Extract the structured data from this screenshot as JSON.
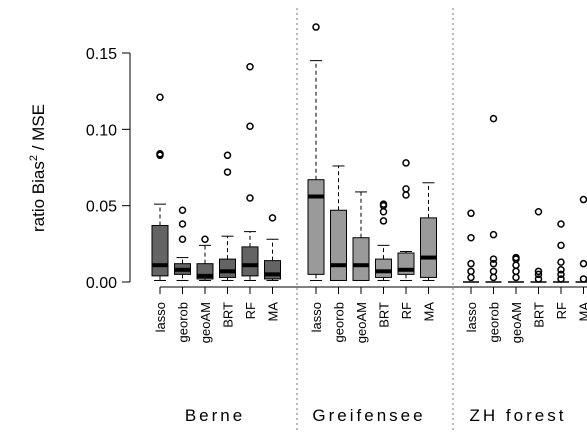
{
  "chart_data": {
    "type": "boxplot",
    "ylabel_main": "ratio Bias",
    "ylabel_sup": "2",
    "ylabel_rest": " / MSE",
    "y_ticks": [
      "0.00",
      "0.05",
      "0.10",
      "0.15"
    ],
    "y_tick_values": [
      0.0,
      0.05,
      0.1,
      0.15
    ],
    "ylim": [
      0.0,
      0.17
    ],
    "colors": {
      "Berne": "#646464",
      "Greifensee": "#9a9a9a",
      "ZH forest": "#d0d0d0"
    },
    "groups": [
      {
        "name": "Berne",
        "methods": [
          {
            "label": "lasso",
            "min": 0.001,
            "q1": 0.004,
            "median": 0.011,
            "q3": 0.037,
            "max": 0.051,
            "outliers": [
              0.083,
              0.084,
              0.121
            ]
          },
          {
            "label": "georob",
            "min": 0.001,
            "q1": 0.005,
            "median": 0.008,
            "q3": 0.012,
            "max": 0.016,
            "outliers": [
              0.028,
              0.038,
              0.047
            ]
          },
          {
            "label": "geoAM",
            "min": 0.001,
            "q1": 0.002,
            "median": 0.004,
            "q3": 0.012,
            "max": 0.024,
            "outliers": [
              0.028
            ]
          },
          {
            "label": "BRT",
            "min": 0.001,
            "q1": 0.003,
            "median": 0.007,
            "q3": 0.015,
            "max": 0.03,
            "outliers": [
              0.072,
              0.083
            ]
          },
          {
            "label": "RF",
            "min": 0.001,
            "q1": 0.004,
            "median": 0.011,
            "q3": 0.023,
            "max": 0.033,
            "outliers": [
              0.055,
              0.102,
              0.141
            ]
          },
          {
            "label": "MA",
            "min": 0.001,
            "q1": 0.002,
            "median": 0.005,
            "q3": 0.014,
            "max": 0.028,
            "outliers": [
              0.042
            ]
          }
        ]
      },
      {
        "name": "Greifensee",
        "methods": [
          {
            "label": "lasso",
            "min": 0.001,
            "q1": 0.005,
            "median": 0.056,
            "q3": 0.067,
            "max": 0.145,
            "outliers": [
              0.167
            ]
          },
          {
            "label": "georob",
            "min": 0.001,
            "q1": 0.001,
            "median": 0.011,
            "q3": 0.047,
            "max": 0.076,
            "outliers": []
          },
          {
            "label": "geoAM",
            "min": 0.001,
            "q1": 0.001,
            "median": 0.011,
            "q3": 0.029,
            "max": 0.059,
            "outliers": []
          },
          {
            "label": "BRT",
            "min": 0.001,
            "q1": 0.003,
            "median": 0.007,
            "q3": 0.015,
            "max": 0.024,
            "outliers": [
              0.04,
              0.046,
              0.05,
              0.051
            ]
          },
          {
            "label": "RF",
            "min": 0.001,
            "q1": 0.005,
            "median": 0.008,
            "q3": 0.019,
            "max": 0.02,
            "outliers": [
              0.057,
              0.061,
              0.078
            ]
          },
          {
            "label": "MA",
            "min": 0.001,
            "q1": 0.003,
            "median": 0.016,
            "q3": 0.042,
            "max": 0.065,
            "outliers": []
          }
        ]
      },
      {
        "name": "ZH forest",
        "methods": [
          {
            "label": "lasso",
            "min": 0.0,
            "q1": 0.0,
            "median": 0.0,
            "q3": 0.0,
            "max": 0.0,
            "outliers": [
              0.003,
              0.007,
              0.012,
              0.029,
              0.045
            ]
          },
          {
            "label": "georob",
            "min": 0.0,
            "q1": 0.0,
            "median": 0.0,
            "q3": 0.0,
            "max": 0.0,
            "outliers": [
              0.003,
              0.007,
              0.012,
              0.015,
              0.031,
              0.107
            ]
          },
          {
            "label": "geoAM",
            "min": 0.0,
            "q1": 0.0,
            "median": 0.0,
            "q3": 0.0,
            "max": 0.0,
            "outliers": [
              0.003,
              0.007,
              0.011,
              0.015,
              0.016
            ]
          },
          {
            "label": "BRT",
            "min": 0.0,
            "q1": 0.0,
            "median": 0.0,
            "q3": 0.0,
            "max": 0.0,
            "outliers": [
              0.002,
              0.005,
              0.007,
              0.046
            ]
          },
          {
            "label": "RF",
            "min": 0.0,
            "q1": 0.0,
            "median": 0.0,
            "q3": 0.0,
            "max": 0.0,
            "outliers": [
              0.002,
              0.005,
              0.008,
              0.013,
              0.024,
              0.038
            ]
          },
          {
            "label": "MA",
            "min": 0.0,
            "q1": 0.0,
            "median": 0.0,
            "q3": 0.0,
            "max": 0.0,
            "outliers": [
              0.002,
              0.012,
              0.054
            ]
          }
        ]
      }
    ]
  }
}
